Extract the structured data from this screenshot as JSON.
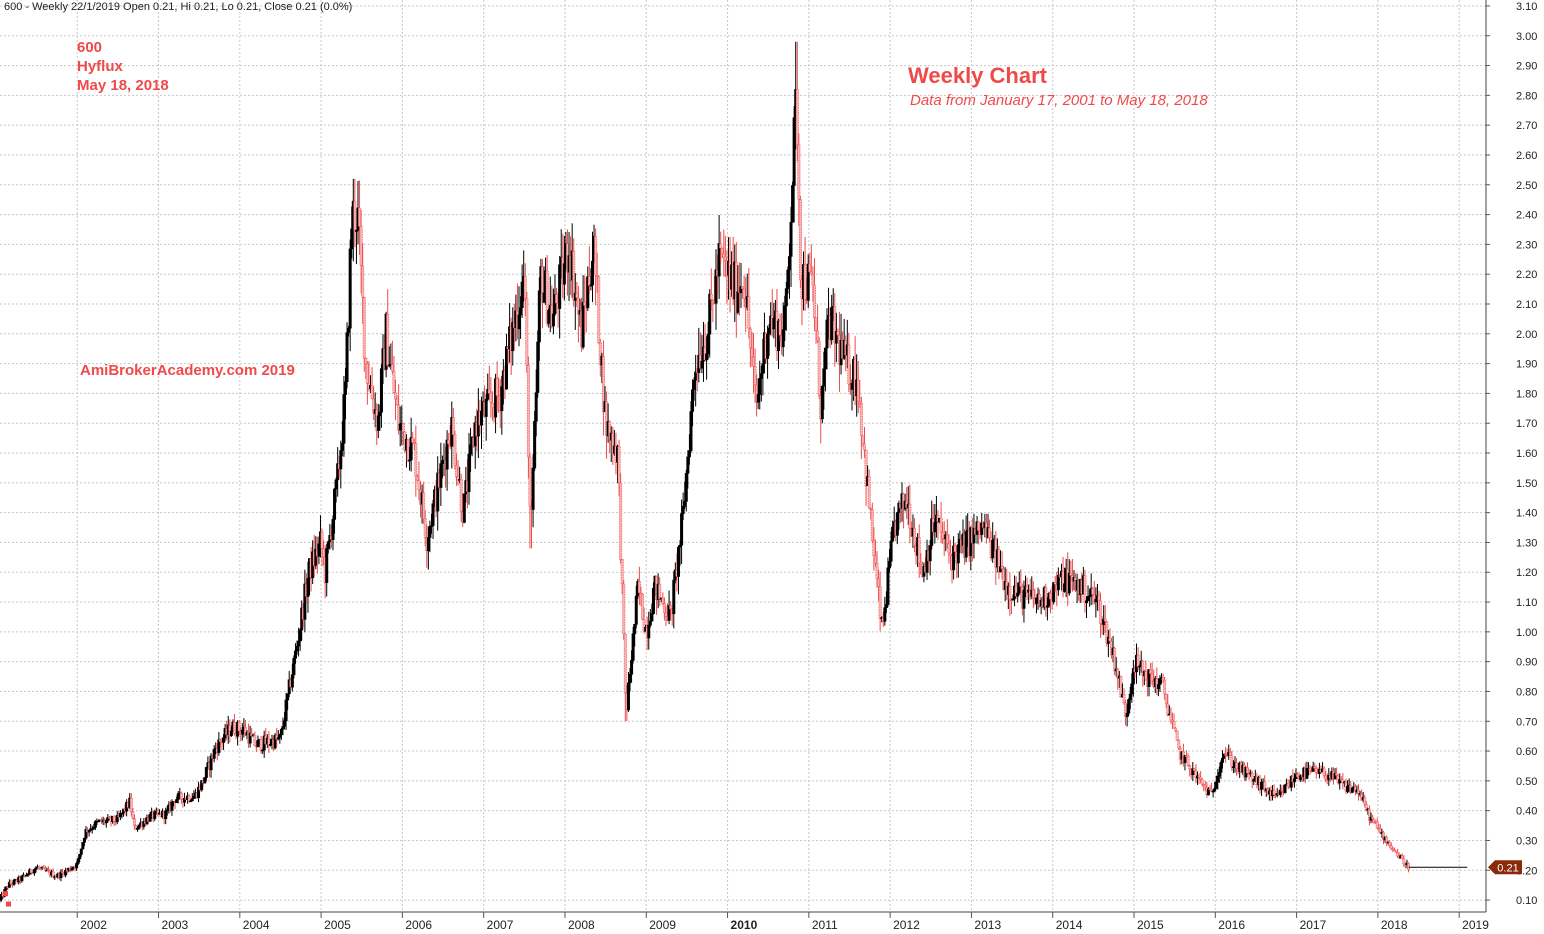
{
  "header": {
    "info_line": "600 - Weekly 22/1/2019 Open 0.21, Hi 0.21, Lo 0.21, Close 0.21 (0.0%)"
  },
  "annotations": {
    "symbol": "600",
    "name": "Hyflux",
    "date": "May 18, 2018",
    "watermark": "AmiBrokerAcademy.com  2019",
    "title": "Weekly Chart",
    "subtitle": "Data from January 17, 2001 to May 18, 2018"
  },
  "colors": {
    "down_candle": "#ef4a4a",
    "up_candle": "#000000",
    "grid": "#c8c8c8",
    "last_price_badge": "#8b2a0a",
    "last_price_text": "#ffffff"
  },
  "chart_data": {
    "type": "line",
    "title": "Weekly Chart",
    "subtitle": "Data from January 17, 2001 to May 18, 2018",
    "xlabel": "",
    "ylabel": "",
    "xlim": [
      2001.05,
      2019.33
    ],
    "ylim": [
      0.06,
      3.12
    ],
    "x_ticks": [
      "2002",
      "2003",
      "2004",
      "2005",
      "2006",
      "2007",
      "2008",
      "2009",
      "2010",
      "2011",
      "2012",
      "2013",
      "2014",
      "2015",
      "2016",
      "2017",
      "2018",
      "2019"
    ],
    "y_ticks": [
      "0.10",
      "0.20",
      "0.30",
      "0.40",
      "0.50",
      "0.60",
      "0.70",
      "0.80",
      "0.90",
      "1.00",
      "1.10",
      "1.20",
      "1.30",
      "1.40",
      "1.50",
      "1.60",
      "1.70",
      "1.80",
      "1.90",
      "2.00",
      "2.10",
      "2.20",
      "2.30",
      "2.40",
      "2.50",
      "2.60",
      "2.70",
      "2.80",
      "2.90",
      "3.00",
      "3.10"
    ],
    "grid": true,
    "last_price_label": "0.21",
    "last_price": 0.21,
    "series": [
      {
        "points": [
          [
            2001.05,
            0.1
          ],
          [
            2001.15,
            0.15
          ],
          [
            2001.3,
            0.17
          ],
          [
            2001.5,
            0.21
          ],
          [
            2001.75,
            0.18
          ],
          [
            2002.0,
            0.22
          ],
          [
            2002.1,
            0.33
          ],
          [
            2002.25,
            0.36
          ],
          [
            2002.5,
            0.37
          ],
          [
            2002.65,
            0.43
          ],
          [
            2002.7,
            0.34
          ],
          [
            2002.9,
            0.38
          ],
          [
            2003.1,
            0.39
          ],
          [
            2003.2,
            0.44
          ],
          [
            2003.45,
            0.45
          ],
          [
            2003.55,
            0.5
          ],
          [
            2003.7,
            0.61
          ],
          [
            2003.9,
            0.68
          ],
          [
            2004.05,
            0.67
          ],
          [
            2004.2,
            0.62
          ],
          [
            2004.5,
            0.64
          ],
          [
            2004.7,
            0.95
          ],
          [
            2004.85,
            1.2
          ],
          [
            2005.0,
            1.3
          ],
          [
            2005.05,
            1.2
          ],
          [
            2005.2,
            1.5
          ],
          [
            2005.3,
            1.8
          ],
          [
            2005.38,
            2.4
          ],
          [
            2005.45,
            2.4
          ],
          [
            2005.55,
            1.9
          ],
          [
            2005.7,
            1.7
          ],
          [
            2005.8,
            2.0
          ],
          [
            2005.95,
            1.7
          ],
          [
            2006.15,
            1.6
          ],
          [
            2006.3,
            1.32
          ],
          [
            2006.45,
            1.5
          ],
          [
            2006.6,
            1.7
          ],
          [
            2006.75,
            1.4
          ],
          [
            2006.9,
            1.7
          ],
          [
            2007.2,
            1.8
          ],
          [
            2007.5,
            2.2
          ],
          [
            2007.58,
            1.3
          ],
          [
            2007.7,
            2.2
          ],
          [
            2007.85,
            2.05
          ],
          [
            2008.05,
            2.3
          ],
          [
            2008.2,
            2.0
          ],
          [
            2008.35,
            2.3
          ],
          [
            2008.5,
            1.7
          ],
          [
            2008.65,
            1.6
          ],
          [
            2008.75,
            0.72
          ],
          [
            2008.9,
            1.15
          ],
          [
            2009.0,
            1.0
          ],
          [
            2009.1,
            1.15
          ],
          [
            2009.3,
            1.05
          ],
          [
            2009.45,
            1.38
          ],
          [
            2009.6,
            1.9
          ],
          [
            2009.75,
            2.0
          ],
          [
            2009.9,
            2.25
          ],
          [
            2010.1,
            2.15
          ],
          [
            2010.2,
            2.2
          ],
          [
            2010.35,
            1.75
          ],
          [
            2010.5,
            2.05
          ],
          [
            2010.7,
            2.0
          ],
          [
            2010.85,
            2.8
          ],
          [
            2010.9,
            2.2
          ],
          [
            2011.05,
            2.15
          ],
          [
            2011.15,
            1.75
          ],
          [
            2011.25,
            2.05
          ],
          [
            2011.45,
            1.9
          ],
          [
            2011.6,
            1.85
          ],
          [
            2011.75,
            1.4
          ],
          [
            2011.9,
            1.0
          ],
          [
            2012.05,
            1.35
          ],
          [
            2012.2,
            1.45
          ],
          [
            2012.4,
            1.2
          ],
          [
            2012.55,
            1.38
          ],
          [
            2012.75,
            1.25
          ],
          [
            2012.95,
            1.3
          ],
          [
            2013.15,
            1.35
          ],
          [
            2013.3,
            1.25
          ],
          [
            2013.45,
            1.15
          ],
          [
            2013.65,
            1.12
          ],
          [
            2013.85,
            1.1
          ],
          [
            2014.15,
            1.18
          ],
          [
            2014.35,
            1.15
          ],
          [
            2014.55,
            1.1
          ],
          [
            2014.75,
            0.92
          ],
          [
            2014.9,
            0.72
          ],
          [
            2015.0,
            0.9
          ],
          [
            2015.15,
            0.85
          ],
          [
            2015.35,
            0.82
          ],
          [
            2015.55,
            0.6
          ],
          [
            2015.75,
            0.52
          ],
          [
            2015.95,
            0.45
          ],
          [
            2016.1,
            0.6
          ],
          [
            2016.25,
            0.55
          ],
          [
            2016.5,
            0.5
          ],
          [
            2016.75,
            0.44
          ],
          [
            2017.0,
            0.52
          ],
          [
            2017.2,
            0.53
          ],
          [
            2017.4,
            0.52
          ],
          [
            2017.6,
            0.48
          ],
          [
            2017.75,
            0.47
          ],
          [
            2017.9,
            0.38
          ],
          [
            2018.05,
            0.32
          ],
          [
            2018.25,
            0.25
          ],
          [
            2018.38,
            0.21
          ],
          [
            2019.1,
            0.21
          ]
        ]
      }
    ]
  }
}
